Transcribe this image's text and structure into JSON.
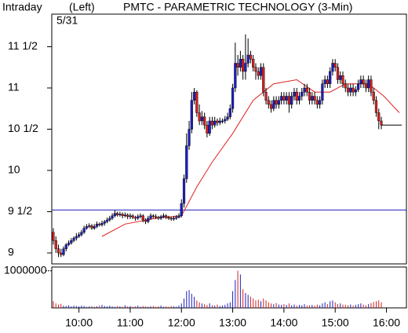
{
  "chart_data": {
    "type": "candlestick",
    "header": "Intraday",
    "side": "(Left)",
    "title": "PMTC - PARAMETRIC TECHNOLOGY (3-Min)",
    "date": "5/31",
    "up_color": "#1f1fbf",
    "down_color": "#d42020",
    "x": [
      9.5,
      9.55,
      9.6,
      9.65,
      9.7,
      9.75,
      9.8,
      9.85,
      9.9,
      9.95,
      10,
      10.05,
      10.1,
      10.15,
      10.2,
      10.25,
      10.3,
      10.35,
      10.4,
      10.45,
      10.5,
      10.55,
      10.6,
      10.65,
      10.7,
      10.75,
      10.8,
      10.85,
      10.9,
      10.95,
      11,
      11.05,
      11.1,
      11.15,
      11.2,
      11.25,
      11.3,
      11.35,
      11.4,
      11.45,
      11.5,
      11.55,
      11.6,
      11.65,
      11.7,
      11.75,
      11.8,
      11.85,
      11.9,
      11.95,
      12,
      12.05,
      12.1,
      12.15,
      12.2,
      12.25,
      12.3,
      12.35,
      12.4,
      12.45,
      12.5,
      12.55,
      12.6,
      12.65,
      12.7,
      12.75,
      12.8,
      12.85,
      12.9,
      12.95,
      13,
      13.05,
      13.1,
      13.15,
      13.2,
      13.25,
      13.3,
      13.35,
      13.4,
      13.45,
      13.5,
      13.55,
      13.6,
      13.65,
      13.7,
      13.75,
      13.8,
      13.85,
      13.9,
      13.95,
      14,
      14.05,
      14.1,
      14.15,
      14.2,
      14.25,
      14.3,
      14.35,
      14.4,
      14.45,
      14.5,
      14.55,
      14.6,
      14.65,
      14.7,
      14.75,
      14.8,
      14.85,
      14.9,
      14.95,
      15,
      15.05,
      15.1,
      15.15,
      15.2,
      15.25,
      15.3,
      15.35,
      15.4,
      15.45,
      15.5,
      15.55,
      15.6,
      15.65,
      15.7,
      15.75,
      15.8,
      15.85,
      15.9
    ],
    "open": [
      9.25,
      9.15,
      9.05,
      9.0,
      8.98,
      9.05,
      9.1,
      9.12,
      9.15,
      9.18,
      9.2,
      9.22,
      9.25,
      9.3,
      9.32,
      9.33,
      9.3,
      9.32,
      9.35,
      9.34,
      9.36,
      9.38,
      9.4,
      9.42,
      9.45,
      9.48,
      9.46,
      9.47,
      9.45,
      9.46,
      9.44,
      9.45,
      9.43,
      9.42,
      9.44,
      9.45,
      9.4,
      9.38,
      9.42,
      9.45,
      9.44,
      9.43,
      9.42,
      9.44,
      9.45,
      9.43,
      9.42,
      9.41,
      9.42,
      9.43,
      9.45,
      9.6,
      9.9,
      10.3,
      10.5,
      10.85,
      10.95,
      10.7,
      10.6,
      10.65,
      10.55,
      10.45,
      10.6,
      10.55,
      10.6,
      10.58,
      10.6,
      10.6,
      10.62,
      10.65,
      10.75,
      11.0,
      11.3,
      11.25,
      11.35,
      11.2,
      11.3,
      11.4,
      11.35,
      11.25,
      11.2,
      11.15,
      11.25,
      10.95,
      10.85,
      10.8,
      10.75,
      10.85,
      10.8,
      10.85,
      10.9,
      10.85,
      10.9,
      10.8,
      10.9,
      10.95,
      10.85,
      10.9,
      10.95,
      11.0,
      10.95,
      10.85,
      10.9,
      10.85,
      10.8,
      10.85,
      11.05,
      11.1,
      11.05,
      11.2,
      11.3,
      11.25,
      11.1,
      11.15,
      11.05,
      11.0,
      10.95,
      11.0,
      10.95,
      10.98,
      11.05,
      11.1,
      11.05,
      11.0,
      11.1,
      10.95,
      10.85,
      10.7,
      10.6
    ],
    "high": [
      9.3,
      9.2,
      9.1,
      9.05,
      9.08,
      9.12,
      9.15,
      9.18,
      9.2,
      9.24,
      9.25,
      9.28,
      9.33,
      9.35,
      9.36,
      9.35,
      9.35,
      9.38,
      9.37,
      9.39,
      9.4,
      9.43,
      9.45,
      9.48,
      9.52,
      9.5,
      9.5,
      9.49,
      9.49,
      9.48,
      9.48,
      9.47,
      9.45,
      9.47,
      9.48,
      9.47,
      9.42,
      9.45,
      9.48,
      9.47,
      9.47,
      9.45,
      9.46,
      9.48,
      9.47,
      9.45,
      9.44,
      9.45,
      9.46,
      9.48,
      9.65,
      9.95,
      10.45,
      10.6,
      10.95,
      11.0,
      10.97,
      10.8,
      10.72,
      10.7,
      10.6,
      10.65,
      10.65,
      10.65,
      10.63,
      10.64,
      10.63,
      10.66,
      10.7,
      10.8,
      11.05,
      11.55,
      11.4,
      11.45,
      11.4,
      11.65,
      11.6,
      11.45,
      11.4,
      11.3,
      11.25,
      11.3,
      11.3,
      11.0,
      10.9,
      10.85,
      10.9,
      10.9,
      10.9,
      10.95,
      10.95,
      10.95,
      10.95,
      10.95,
      11.0,
      11.0,
      10.95,
      11.0,
      11.05,
      11.05,
      11.0,
      10.95,
      10.95,
      10.9,
      10.9,
      11.1,
      11.15,
      11.15,
      11.25,
      11.35,
      11.35,
      11.3,
      11.2,
      11.2,
      11.1,
      11.05,
      11.05,
      11.05,
      11.02,
      11.1,
      11.15,
      11.15,
      11.1,
      11.15,
      11.15,
      11.0,
      10.9,
      10.75,
      10.65
    ],
    "low": [
      9.1,
      9.0,
      8.95,
      8.95,
      8.96,
      9.02,
      9.08,
      9.1,
      9.13,
      9.15,
      9.18,
      9.2,
      9.23,
      9.28,
      9.3,
      9.28,
      9.28,
      9.3,
      9.32,
      9.32,
      9.33,
      9.36,
      9.38,
      9.4,
      9.43,
      9.44,
      9.44,
      9.42,
      9.43,
      9.41,
      9.41,
      9.41,
      9.39,
      9.4,
      9.42,
      9.37,
      9.35,
      9.36,
      9.4,
      9.42,
      9.41,
      9.4,
      9.4,
      9.42,
      9.41,
      9.4,
      9.39,
      9.39,
      9.4,
      9.42,
      9.43,
      9.55,
      9.85,
      10.25,
      10.45,
      10.8,
      10.65,
      10.55,
      10.55,
      10.5,
      10.4,
      10.42,
      10.5,
      10.52,
      10.54,
      10.55,
      10.57,
      10.57,
      10.6,
      10.62,
      10.7,
      10.95,
      11.15,
      11.2,
      11.1,
      11.1,
      11.25,
      11.3,
      11.2,
      11.1,
      11.1,
      11.1,
      10.9,
      10.8,
      10.75,
      10.7,
      10.72,
      10.75,
      10.75,
      10.8,
      10.8,
      10.8,
      10.7,
      10.75,
      10.85,
      10.8,
      10.8,
      10.85,
      10.9,
      10.9,
      10.8,
      10.8,
      10.8,
      10.75,
      10.75,
      10.8,
      11.0,
      11.0,
      11.0,
      11.15,
      11.2,
      11.05,
      11.05,
      11.0,
      10.95,
      10.9,
      10.9,
      10.9,
      10.9,
      10.95,
      11.0,
      11.0,
      10.95,
      10.95,
      10.9,
      10.8,
      10.65,
      10.5,
      10.5
    ],
    "close": [
      9.15,
      9.05,
      9.0,
      8.98,
      9.05,
      9.1,
      9.12,
      9.15,
      9.18,
      9.2,
      9.22,
      9.25,
      9.3,
      9.32,
      9.33,
      9.3,
      9.32,
      9.35,
      9.34,
      9.36,
      9.38,
      9.4,
      9.42,
      9.45,
      9.48,
      9.46,
      9.47,
      9.45,
      9.46,
      9.44,
      9.45,
      9.43,
      9.42,
      9.44,
      9.45,
      9.4,
      9.38,
      9.42,
      9.45,
      9.44,
      9.43,
      9.42,
      9.44,
      9.45,
      9.43,
      9.42,
      9.41,
      9.42,
      9.43,
      9.45,
      9.6,
      9.9,
      10.3,
      10.5,
      10.85,
      10.95,
      10.7,
      10.6,
      10.65,
      10.55,
      10.45,
      10.6,
      10.55,
      10.6,
      10.58,
      10.6,
      10.6,
      10.62,
      10.65,
      10.75,
      11.0,
      11.3,
      11.25,
      11.35,
      11.2,
      11.3,
      11.4,
      11.35,
      11.25,
      11.2,
      11.15,
      11.25,
      10.95,
      10.85,
      10.8,
      10.75,
      10.85,
      10.8,
      10.85,
      10.9,
      10.85,
      10.9,
      10.8,
      10.9,
      10.95,
      10.85,
      10.9,
      10.95,
      11.0,
      10.95,
      10.85,
      10.9,
      10.85,
      10.8,
      10.85,
      11.05,
      11.1,
      11.05,
      11.2,
      11.3,
      11.25,
      11.1,
      11.15,
      11.05,
      11.0,
      10.95,
      11.0,
      10.95,
      10.98,
      11.05,
      11.1,
      11.05,
      11.0,
      11.1,
      10.95,
      10.85,
      10.7,
      10.6,
      10.55
    ],
    "ma": {
      "color": "#e02020",
      "x": [
        10.45,
        10.9,
        11.5,
        12.0,
        12.3,
        12.6,
        13.0,
        13.4,
        13.8,
        14.25,
        14.6,
        14.9,
        15.2,
        15.65,
        15.95,
        16.25
      ],
      "values": [
        9.2,
        9.35,
        9.42,
        9.45,
        9.8,
        10.1,
        10.45,
        10.85,
        11.05,
        11.1,
        10.95,
        10.95,
        11.05,
        11.05,
        10.9,
        10.7
      ]
    },
    "hline": 9.52,
    "hline_color": "#2020c0",
    "xlim": [
      9.47,
      16.39
    ],
    "xticks": [
      {
        "value": 10,
        "label": "10:00"
      },
      {
        "value": 11,
        "label": "11:00"
      },
      {
        "value": 12,
        "label": "12:00"
      },
      {
        "value": 13,
        "label": "13:00"
      },
      {
        "value": 14,
        "label": "14:00"
      },
      {
        "value": 15,
        "label": "15:00"
      },
      {
        "value": 16,
        "label": "16:00"
      }
    ],
    "ylim": [
      8.867,
      11.895
    ],
    "yticks": [
      9,
      {
        "value": 9.5,
        "label": "9 1/2"
      },
      10,
      {
        "value": 10.5,
        "label": "10 1/2"
      },
      11,
      {
        "value": 11.5,
        "label": "11 1/2"
      }
    ],
    "volume": {
      "ylim": [
        0,
        1100000
      ],
      "yticks": [
        1000000
      ],
      "values": [
        180000,
        120000,
        90000,
        110000,
        60000,
        50000,
        70000,
        40000,
        60000,
        50000,
        40000,
        60000,
        50000,
        30000,
        40000,
        50000,
        30000,
        40000,
        60000,
        80000,
        50000,
        40000,
        60000,
        40000,
        30000,
        50000,
        40000,
        30000,
        70000,
        40000,
        50000,
        30000,
        40000,
        60000,
        30000,
        50000,
        40000,
        30000,
        40000,
        50000,
        30000,
        40000,
        60000,
        30000,
        40000,
        30000,
        50000,
        40000,
        30000,
        60000,
        120000,
        250000,
        450000,
        480000,
        380000,
        300000,
        200000,
        150000,
        120000,
        100000,
        80000,
        120000,
        70000,
        60000,
        90000,
        50000,
        60000,
        80000,
        120000,
        150000,
        450000,
        750000,
        1000000,
        900000,
        500000,
        400000,
        350000,
        300000,
        250000,
        200000,
        220000,
        180000,
        250000,
        200000,
        150000,
        120000,
        100000,
        130000,
        90000,
        80000,
        100000,
        80000,
        120000,
        70000,
        90000,
        60000,
        80000,
        70000,
        100000,
        60000,
        70000,
        80000,
        60000,
        90000,
        70000,
        120000,
        150000,
        100000,
        180000,
        200000,
        150000,
        100000,
        120000,
        90000,
        80000,
        70000,
        90000,
        60000,
        80000,
        100000,
        120000,
        90000,
        70000,
        100000,
        130000,
        160000,
        180000,
        200000,
        150000
      ]
    }
  }
}
